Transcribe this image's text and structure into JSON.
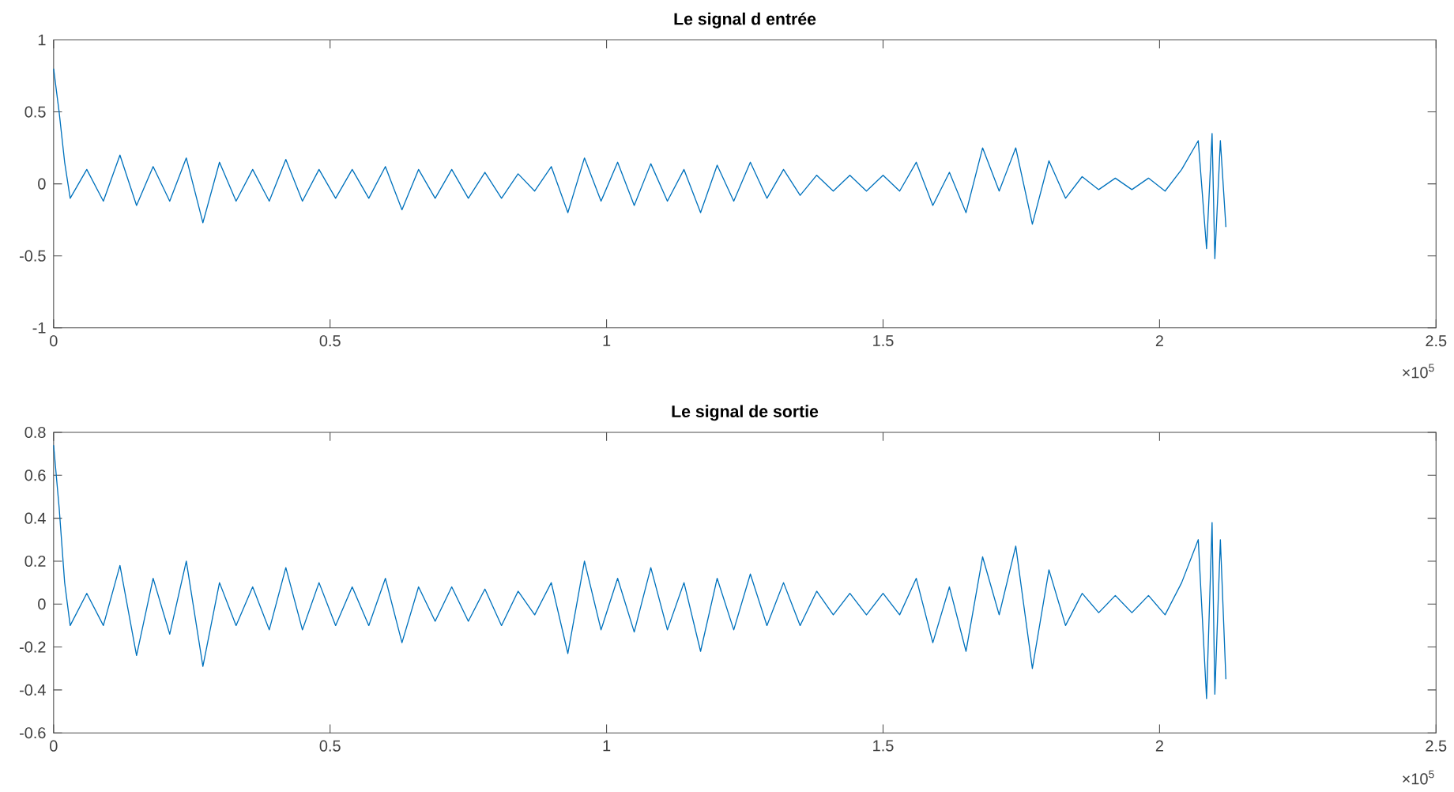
{
  "chart_data": [
    {
      "type": "line",
      "title": "Le signal d entrée",
      "color": "#0072bd",
      "line_style": "solid",
      "grid": false,
      "x": [
        0,
        0.01,
        0.02,
        0.03,
        0.06,
        0.09,
        0.12,
        0.15,
        0.18,
        0.21,
        0.24,
        0.27,
        0.3,
        0.33,
        0.36,
        0.39,
        0.42,
        0.45,
        0.48,
        0.51,
        0.54,
        0.57,
        0.6,
        0.63,
        0.66,
        0.69,
        0.72,
        0.75,
        0.78,
        0.81,
        0.84,
        0.87,
        0.9,
        0.93,
        0.96,
        0.99,
        1.02,
        1.05,
        1.08,
        1.11,
        1.14,
        1.17,
        1.2,
        1.23,
        1.26,
        1.29,
        1.32,
        1.35,
        1.38,
        1.41,
        1.44,
        1.47,
        1.5,
        1.53,
        1.56,
        1.59,
        1.62,
        1.65,
        1.68,
        1.71,
        1.74,
        1.77,
        1.8,
        1.83,
        1.86,
        1.89,
        1.92,
        1.95,
        1.98,
        2.01,
        2.04,
        2.07,
        2.085,
        2.095,
        2.1,
        2.11,
        2.12
      ],
      "values": [
        0.8,
        0.5,
        0.15,
        -0.1,
        0.1,
        -0.12,
        0.2,
        -0.15,
        0.12,
        -0.12,
        0.18,
        -0.27,
        0.15,
        -0.12,
        0.1,
        -0.12,
        0.17,
        -0.12,
        0.1,
        -0.1,
        0.1,
        -0.1,
        0.12,
        -0.18,
        0.1,
        -0.1,
        0.1,
        -0.1,
        0.08,
        -0.1,
        0.07,
        -0.05,
        0.12,
        -0.2,
        0.18,
        -0.12,
        0.15,
        -0.15,
        0.14,
        -0.12,
        0.1,
        -0.2,
        0.13,
        -0.12,
        0.15,
        -0.1,
        0.1,
        -0.08,
        0.06,
        -0.05,
        0.06,
        -0.05,
        0.06,
        -0.05,
        0.15,
        -0.15,
        0.08,
        -0.2,
        0.25,
        -0.05,
        0.25,
        -0.28,
        0.16,
        -0.1,
        0.05,
        -0.04,
        0.04,
        -0.04,
        0.04,
        -0.05,
        0.1,
        0.3,
        -0.45,
        0.35,
        -0.52,
        0.3,
        -0.3
      ],
      "xlim": [
        0,
        2.5
      ],
      "ylim": [
        -1,
        1
      ],
      "xticks": [
        0,
        0.5,
        1,
        1.5,
        2,
        2.5
      ],
      "yticks": [
        -1,
        -0.5,
        0,
        0.5,
        1
      ],
      "annotations": [
        "×10$^{5}$"
      ]
    },
    {
      "type": "line",
      "title": "Le signal de sortie",
      "color": "#0072bd",
      "line_style": "solid",
      "grid": false,
      "x": [
        0,
        0.01,
        0.02,
        0.03,
        0.06,
        0.09,
        0.12,
        0.15,
        0.18,
        0.21,
        0.24,
        0.27,
        0.3,
        0.33,
        0.36,
        0.39,
        0.42,
        0.45,
        0.48,
        0.51,
        0.54,
        0.57,
        0.6,
        0.63,
        0.66,
        0.69,
        0.72,
        0.75,
        0.78,
        0.81,
        0.84,
        0.87,
        0.9,
        0.93,
        0.96,
        0.99,
        1.02,
        1.05,
        1.08,
        1.11,
        1.14,
        1.17,
        1.2,
        1.23,
        1.26,
        1.29,
        1.32,
        1.35,
        1.38,
        1.41,
        1.44,
        1.47,
        1.5,
        1.53,
        1.56,
        1.59,
        1.62,
        1.65,
        1.68,
        1.71,
        1.74,
        1.77,
        1.8,
        1.83,
        1.86,
        1.89,
        1.92,
        1.95,
        1.98,
        2.01,
        2.04,
        2.07,
        2.085,
        2.095,
        2.1,
        2.11,
        2.12
      ],
      "values": [
        0.74,
        0.45,
        0.1,
        -0.1,
        0.05,
        -0.1,
        0.18,
        -0.24,
        0.12,
        -0.14,
        0.2,
        -0.29,
        0.1,
        -0.1,
        0.08,
        -0.12,
        0.17,
        -0.12,
        0.1,
        -0.1,
        0.08,
        -0.1,
        0.12,
        -0.18,
        0.08,
        -0.08,
        0.08,
        -0.08,
        0.07,
        -0.1,
        0.06,
        -0.05,
        0.1,
        -0.23,
        0.2,
        -0.12,
        0.12,
        -0.13,
        0.17,
        -0.12,
        0.1,
        -0.22,
        0.12,
        -0.12,
        0.14,
        -0.1,
        0.1,
        -0.1,
        0.06,
        -0.05,
        0.05,
        -0.05,
        0.05,
        -0.05,
        0.12,
        -0.18,
        0.08,
        -0.22,
        0.22,
        -0.05,
        0.27,
        -0.3,
        0.16,
        -0.1,
        0.05,
        -0.04,
        0.04,
        -0.04,
        0.04,
        -0.05,
        0.1,
        0.3,
        -0.44,
        0.38,
        -0.42,
        0.3,
        -0.35
      ],
      "xlim": [
        0,
        2.5
      ],
      "ylim": [
        -0.6,
        0.8
      ],
      "xticks": [
        0,
        0.5,
        1,
        1.5,
        2,
        2.5
      ],
      "yticks": [
        -0.6,
        -0.4,
        -0.2,
        0,
        0.2,
        0.4,
        0.6,
        0.8
      ],
      "annotations": [
        "×10$^{5}$"
      ]
    }
  ]
}
